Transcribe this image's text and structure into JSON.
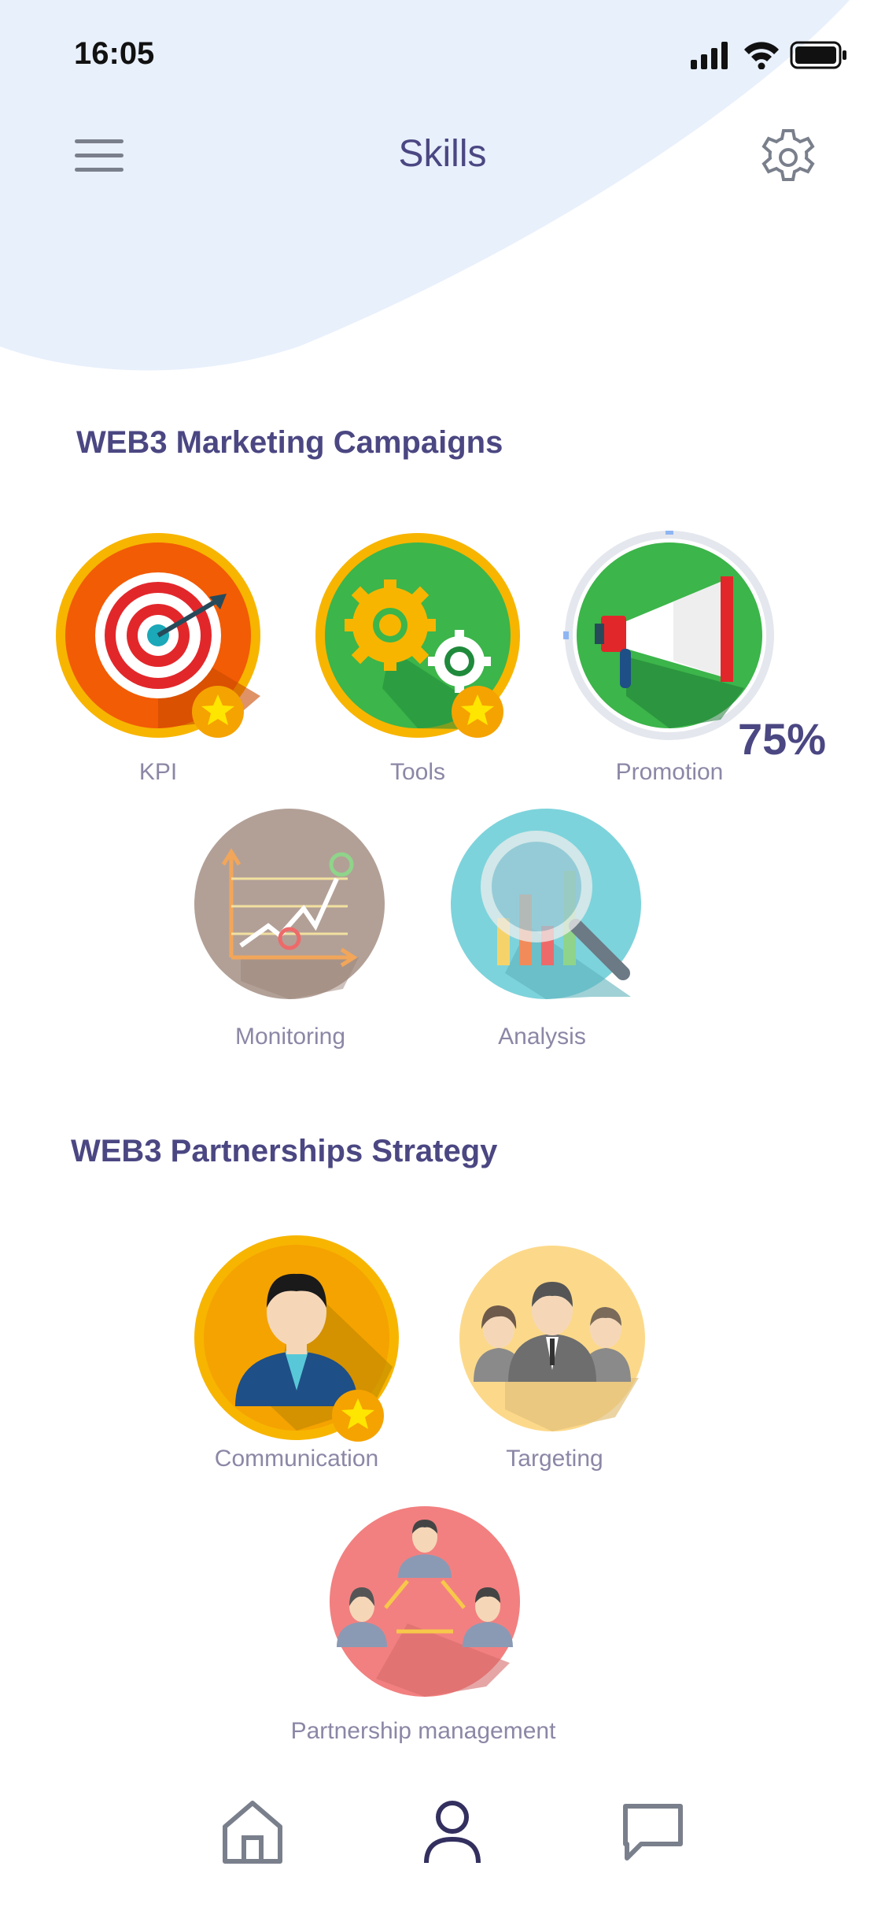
{
  "status_bar": {
    "time": "16:05"
  },
  "header": {
    "title": "Skills"
  },
  "sections": [
    {
      "title": "WEB3 Marketing Campaigns",
      "skills": [
        {
          "label": "KPI",
          "icon": "target-icon",
          "starred": true
        },
        {
          "label": "Tools",
          "icon": "gears-icon",
          "starred": true
        },
        {
          "label": "Promotion",
          "icon": "megaphone-icon",
          "progress_percent": 75,
          "progress_text": "75%"
        },
        {
          "label": "Monitoring",
          "icon": "chart-monitoring-icon"
        },
        {
          "label": "Analysis",
          "icon": "magnifier-analysis-icon"
        }
      ]
    },
    {
      "title": "WEB3 Partnerships Strategy",
      "skills": [
        {
          "label": "Communication",
          "icon": "person-icon",
          "starred": true
        },
        {
          "label": "Targeting",
          "icon": "group-icon"
        },
        {
          "label": "Partnership management",
          "icon": "network-people-icon"
        }
      ]
    }
  ],
  "bottom_nav": {
    "items": [
      {
        "name": "home",
        "icon": "home-icon",
        "active": false
      },
      {
        "name": "profile",
        "icon": "user-icon",
        "active": true
      },
      {
        "name": "messages",
        "icon": "chat-icon",
        "active": false
      }
    ]
  },
  "colors": {
    "accent": "#4b4782",
    "label": "#8b87a6",
    "wave": "#e8f0fc",
    "gold": "#f7b500",
    "progress": "#8fb6f2"
  }
}
